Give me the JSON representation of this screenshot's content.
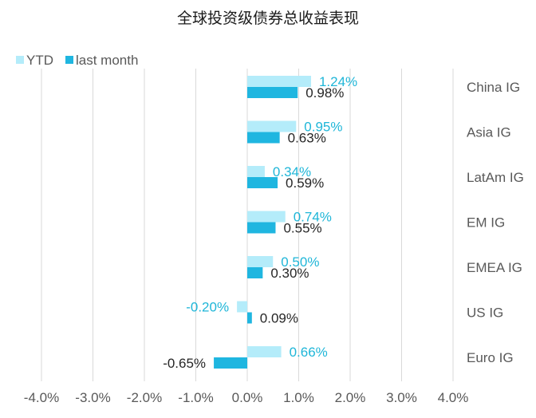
{
  "chart_data": {
    "type": "bar",
    "orientation": "horizontal",
    "title": "全球投资级债券总收益表现",
    "categories": [
      "China IG",
      "Asia IG",
      "LatAm IG",
      "EM IG",
      "EMEA IG",
      "US IG",
      "Euro IG"
    ],
    "series": [
      {
        "name": "YTD",
        "color": "#b4ecfa",
        "label_color": "#1fb6d8",
        "values": [
          1.24,
          0.95,
          0.34,
          0.74,
          0.5,
          -0.2,
          0.66
        ],
        "labels": [
          "1.24%",
          "0.95%",
          "0.34%",
          "0.74%",
          "0.50%",
          "-0.20%",
          "0.66%"
        ]
      },
      {
        "name": "last month",
        "color": "#1fb6e0",
        "label_color": "#262626",
        "values": [
          0.98,
          0.63,
          0.59,
          0.55,
          0.3,
          0.09,
          -0.65
        ],
        "labels": [
          "0.98%",
          "0.63%",
          "0.59%",
          "0.55%",
          "0.30%",
          "0.09%",
          "-0.65%"
        ]
      }
    ],
    "xlim": [
      -4.0,
      4.0
    ],
    "xticks": [
      -4,
      -3,
      -2,
      -1,
      0,
      1,
      2,
      3,
      4
    ],
    "xtick_labels": [
      "-4.0%",
      "-3.0%",
      "-2.0%",
      "-1.0%",
      "0.0%",
      "1.0%",
      "2.0%",
      "3.0%",
      "4.0%"
    ],
    "grid": "vertical",
    "legend_position": "top-left"
  }
}
